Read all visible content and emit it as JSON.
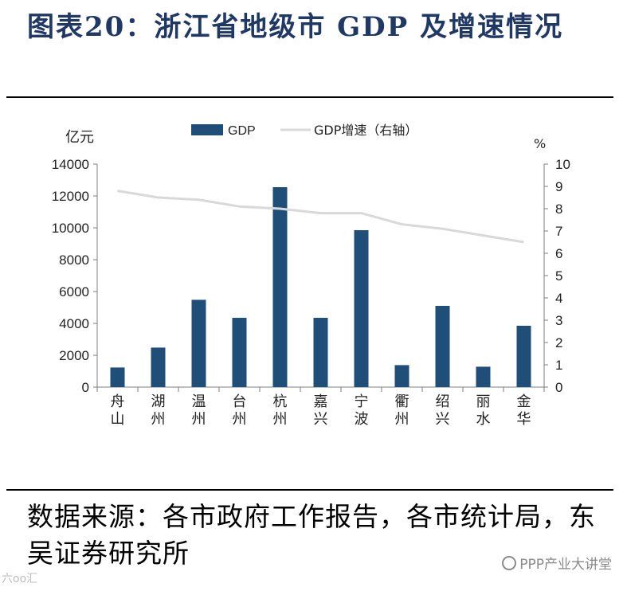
{
  "title": "图表20：浙江省地级市 GDP 及增速情况",
  "source": "数据来源：各市政府工作报告，各市统计局，东吴证券研究所",
  "watermark_right": "PPP产业大讲堂",
  "watermark_left": "六oo汇",
  "colors": {
    "bar": "#1f4e79",
    "line": "#d9d9d9",
    "title": "#1f3864",
    "axis": "#7f7f7f"
  },
  "chart_data": {
    "type": "bar",
    "categories": [
      "舟山",
      "湖州",
      "温州",
      "台州",
      "杭州",
      "嘉兴",
      "宁波",
      "衢州",
      "绍兴",
      "丽水",
      "金华"
    ],
    "category_labels": [
      [
        "舟",
        "山"
      ],
      [
        "湖",
        "州"
      ],
      [
        "温",
        "州"
      ],
      [
        "台",
        "州"
      ],
      [
        "杭",
        "州"
      ],
      [
        "嘉",
        "兴"
      ],
      [
        "宁",
        "波"
      ],
      [
        "衢",
        "州"
      ],
      [
        "绍",
        "兴"
      ],
      [
        "丽",
        "水"
      ],
      [
        "金",
        "华"
      ]
    ],
    "series": [
      {
        "name": "GDP",
        "type": "bar",
        "axis": "left",
        "values": [
          1230,
          2480,
          5480,
          4350,
          12550,
          4350,
          9850,
          1380,
          5100,
          1280,
          3850
        ]
      },
      {
        "name": "GDP增速（右轴）",
        "type": "line",
        "axis": "right",
        "values": [
          8.8,
          8.5,
          8.4,
          8.1,
          8.0,
          7.8,
          7.8,
          7.3,
          7.1,
          6.8,
          6.5
        ]
      }
    ],
    "left_axis": {
      "unit": "亿元",
      "ylim": [
        0,
        14000
      ],
      "ticks": [
        "0",
        "2000",
        "4000",
        "6000",
        "8000",
        "10000",
        "12000",
        "14000"
      ]
    },
    "right_axis": {
      "unit": "%",
      "ylim": [
        0,
        10
      ],
      "ticks": [
        "0",
        "1",
        "2",
        "3",
        "4",
        "5",
        "6",
        "7",
        "8",
        "9",
        "10"
      ]
    },
    "grid": false,
    "legend_position": "top"
  }
}
